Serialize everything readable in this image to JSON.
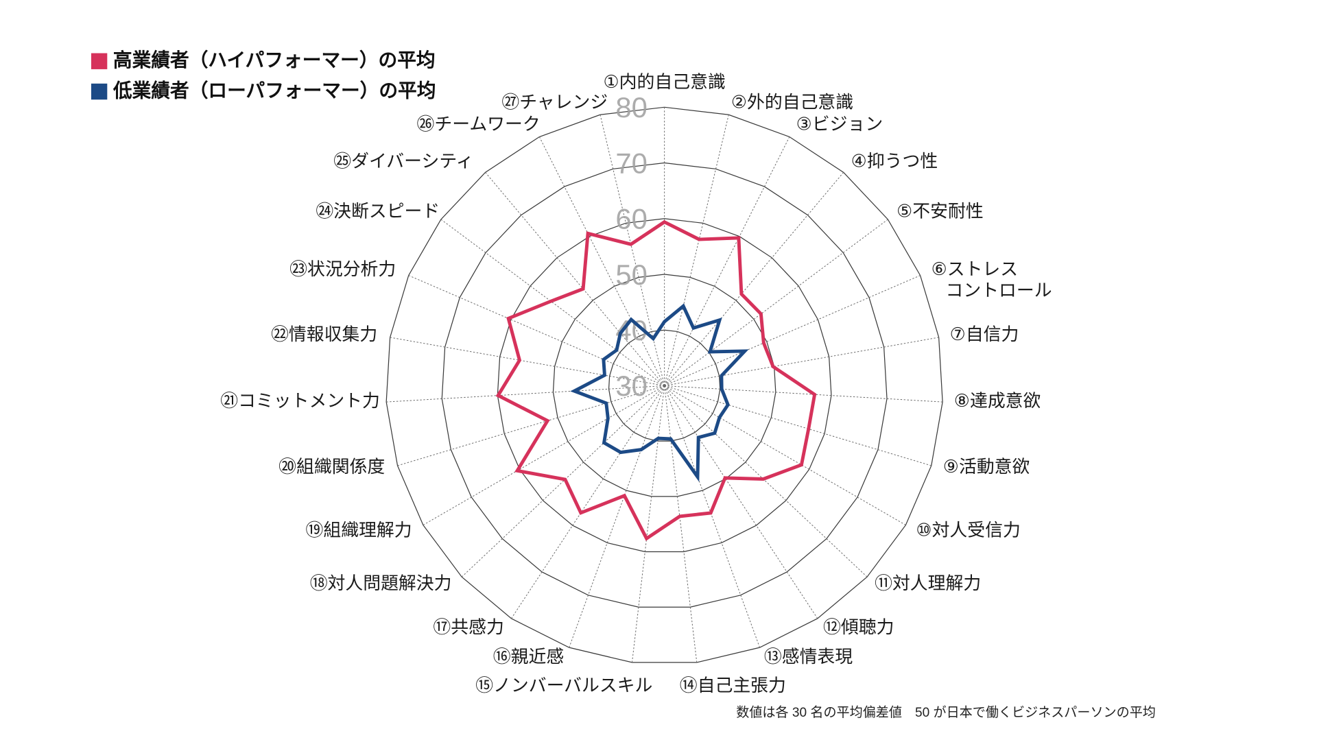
{
  "footnote": "数値は各 30 名の平均偏差値　50 が日本で働くビジネスパーソンの平均",
  "chart_data": {
    "type": "radar",
    "categories": [
      "①内的自己意識",
      "②外的自己意識",
      "③ビジョン",
      "④抑うつ性",
      "⑤不安耐性",
      "⑥ストレス\nコントロール",
      "⑦自信力",
      "⑧達成意欲",
      "⑨活動意欲",
      "⑩対人受信力",
      "⑪対人理解力",
      "⑫傾聴力",
      "⑬感情表現",
      "⑭自己主張力",
      "⑮ノンバーバルスキル",
      "⑯親近感",
      "⑰共感力",
      "⑱対人問題解決力",
      "⑲組織理解力",
      "⑳組織関係度",
      "㉑コミットメント力",
      "㉒情報収集力",
      "㉓状況分析力",
      "㉔決断スピード",
      "㉕ダイバーシティ",
      "㉖チームワーク",
      "㉗チャレンジ"
    ],
    "series": [
      {
        "name": "高業績者（ハイパフォーマー）の平均",
        "color": "#d6325b",
        "values": [
          59.4,
          57.0,
          59.7,
          51.5,
          51.6,
          49.4,
          49.8,
          57.0,
          57.0,
          58.4,
          54.4,
          49.8,
          54.3,
          53.6,
          57.6,
          51.0,
          57.3,
          54.5,
          60.5,
          51.9,
          59.9,
          56.4,
          60.5,
          55.4,
          52.7,
          60.6,
          56.1
        ]
      },
      {
        "name": "低業績者（ローパフォーマー）の平均",
        "color": "#1c4a86",
        "values": [
          41.5,
          44.7,
          41.6,
          45.4,
          40.2,
          45.7,
          40.4,
          40.3,
          41.9,
          41.4,
          42.4,
          41.1,
          47.4,
          39.6,
          39.5,
          42.2,
          44.3,
          44.9,
          41.7,
          40.9,
          46.2,
          40.9,
          41.9,
          40.7,
          42.3,
          43.3,
          38.7
        ]
      }
    ],
    "rlim": [
      30,
      80
    ],
    "r_ticks": [
      30,
      40,
      50,
      60,
      70,
      80
    ],
    "grid": true,
    "legend_position": "top-left"
  }
}
